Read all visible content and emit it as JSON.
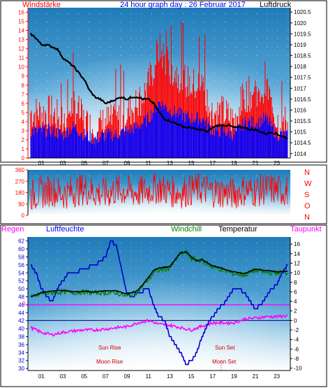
{
  "header": {
    "left_label": "Windstärke",
    "title": "24 hour graph day : 26 Februar 2017",
    "right_label": "Luftdruck"
  },
  "bottom_header": {
    "regen": "Regen",
    "luftfeuchte": "Luftfeuchte",
    "windchill": "Windchill",
    "temperatur": "Temperatur",
    "taupunkt": "Taupunkt"
  },
  "compass_labels": [
    "N",
    "W",
    "S",
    "O",
    "N"
  ],
  "annotations": {
    "sun_rise": "Sun Rise",
    "moon_rise": "Moon Rise",
    "sun_set": "Sun Set",
    "moon_set": "Moon Set",
    "rain_zero": "0"
  },
  "colors": {
    "wind": "#ff0000",
    "gust_bars": "#0000ff",
    "pressure": "#000000",
    "direction": "#ff0000",
    "humidity": "#0000cc",
    "windchill": "#008000",
    "temperature": "#000000",
    "dewpoint": "#ff00ff",
    "panel_top": "#1e78b4",
    "panel_bottom": "#ffffff"
  },
  "chart_data": [
    {
      "type": "line",
      "title": "24 hour graph day : 26 Februar 2017",
      "x_ticks": [
        "01",
        "03",
        "05",
        "07",
        "09",
        "11",
        "13",
        "15",
        "17",
        "19",
        "21",
        "23"
      ],
      "y_left": {
        "label": "Windstärke",
        "ticks": [
          "0",
          "1",
          "2",
          "3",
          "4",
          "5",
          "6",
          "7",
          "8",
          "9",
          "10",
          "11",
          "12",
          "13",
          "14",
          "15",
          "16"
        ],
        "range": [
          0,
          16.5
        ]
      },
      "y_right": {
        "label": "Luftdruck",
        "ticks": [
          "1014",
          "1014.5",
          "1015",
          "1015.5",
          "1016",
          "1016.5",
          "1017",
          "1017.5",
          "1018",
          "1018.5",
          "1019",
          "1019.5",
          "1020",
          "1020.5"
        ],
        "range": [
          1013.8,
          1020.7
        ]
      },
      "series": [
        {
          "name": "Luftdruck",
          "x": [
            0,
            0.5,
            1,
            1.5,
            2,
            2.5,
            3,
            3.5,
            4,
            4.5,
            5,
            5.5,
            6,
            6.5,
            7,
            7.5,
            8,
            8.5,
            9,
            9.5,
            10,
            10.5,
            11,
            11.5,
            12,
            12.5,
            13,
            13.5,
            14,
            14.5,
            15,
            15.5,
            16,
            16.5,
            17,
            17.5,
            18,
            18.5,
            19,
            19.5,
            20,
            20.5,
            21,
            21.5,
            22,
            22.5,
            23,
            23.5,
            24
          ],
          "values": [
            1019.5,
            1019.3,
            1019.0,
            1019.0,
            1018.9,
            1018.8,
            1018.4,
            1018.2,
            1018.0,
            1017.7,
            1017.4,
            1016.9,
            1016.6,
            1016.5,
            1016.3,
            1016.4,
            1016.5,
            1016.6,
            1016.5,
            1016.6,
            1016.6,
            1016.5,
            1016.5,
            1016.3,
            1015.9,
            1015.6,
            1015.5,
            1015.4,
            1015.3,
            1015.2,
            1015.2,
            1015.1,
            1015.1,
            1015.0,
            1015.2,
            1015.3,
            1015.3,
            1015.3,
            1015.2,
            1015.2,
            1015.2,
            1015.1,
            1015.1,
            1015.0,
            1014.9,
            1015.0,
            1014.9,
            1014.8,
            1014.7
          ]
        },
        {
          "name": "Windstärke",
          "x": [
            0,
            1,
            2,
            3,
            4,
            5,
            6,
            7,
            8,
            9,
            10,
            11,
            12,
            13,
            14,
            15,
            16,
            17,
            18,
            19,
            20,
            21,
            22,
            23,
            24
          ],
          "values": [
            5,
            5,
            5,
            4,
            6,
            4,
            3,
            4,
            4,
            5,
            6,
            8,
            12,
            10,
            9,
            8,
            8,
            5,
            5,
            4,
            7,
            7,
            8,
            4,
            4
          ]
        }
      ]
    },
    {
      "type": "scatter",
      "title": "",
      "x_ticks": [],
      "y_left": {
        "label": "",
        "ticks": [
          "0",
          "90",
          "180",
          "270",
          "360"
        ],
        "range": [
          0,
          360
        ]
      },
      "series": [
        {
          "name": "",
          "x": [
            0,
            1,
            2,
            3,
            4,
            5,
            6,
            7,
            8,
            9,
            10,
            11,
            12,
            13,
            14,
            15,
            16,
            17,
            18,
            19,
            20,
            21,
            22,
            23,
            24
          ],
          "values": [
            160,
            180,
            200,
            170,
            190,
            210,
            180,
            170,
            200,
            190,
            180,
            200,
            220,
            190,
            180,
            200,
            210,
            190,
            180,
            170,
            200,
            190,
            210,
            200,
            190
          ]
        }
      ]
    },
    {
      "type": "line",
      "title": "",
      "x_ticks": [
        "01",
        "03",
        "05",
        "07",
        "09",
        "11",
        "13",
        "15",
        "17",
        "19",
        "21",
        "23"
      ],
      "y_left": {
        "label": "Luftfeuchte",
        "ticks": [
          "30",
          "32",
          "34",
          "36",
          "38",
          "40",
          "42",
          "44",
          "46",
          "48",
          "50",
          "52",
          "54",
          "56",
          "58",
          "60",
          "62"
        ],
        "range": [
          29.5,
          63
        ]
      },
      "y_right": {
        "label": "Temperatur",
        "ticks": [
          "-10",
          "-8",
          "-6",
          "-4",
          "-2",
          "0",
          "2",
          "4",
          "6",
          "8",
          "10",
          "12",
          "14",
          "16"
        ],
        "range": [
          -10.5,
          17.5
        ]
      },
      "series": [
        {
          "name": "Luftfeuchte",
          "x": [
            0,
            0.5,
            1,
            1.5,
            2,
            2.5,
            3,
            3.5,
            4,
            5,
            6,
            7,
            7.5,
            8,
            8.5,
            9,
            9.5,
            10,
            11,
            11.5,
            12,
            12.5,
            13,
            13.5,
            14,
            14.5,
            15,
            15.5,
            16,
            16.5,
            17,
            17.5,
            18,
            18.5,
            19,
            19.5,
            20,
            20.5,
            21,
            21.5,
            22,
            22.5,
            23,
            23.5,
            24
          ],
          "values": [
            56,
            54,
            50,
            48,
            47,
            50,
            52,
            54,
            54,
            55,
            56,
            58,
            62,
            61,
            55,
            49,
            48,
            49,
            50,
            46,
            43,
            42,
            38,
            36,
            34,
            31,
            32,
            34,
            38,
            41,
            43,
            45,
            46,
            48,
            50,
            50,
            49,
            47,
            45,
            46,
            48,
            50,
            51,
            54,
            56
          ]
        },
        {
          "name": "Temperatur",
          "x": [
            0,
            1,
            2,
            3,
            4,
            5,
            6,
            7,
            8,
            9,
            10,
            11,
            11.5,
            12,
            13,
            14,
            14.5,
            15,
            15.5,
            16,
            17,
            18,
            19,
            20,
            21,
            22,
            23,
            24
          ],
          "values": [
            5.0,
            5.8,
            6.2,
            6.3,
            6.0,
            6.1,
            6.0,
            6.2,
            6.2,
            5.5,
            6.3,
            9.0,
            10.5,
            11.0,
            11.3,
            14.2,
            14.4,
            13.3,
            12.5,
            12.8,
            11.5,
            10.8,
            10.2,
            9.8,
            10.8,
            10.5,
            10.2,
            10.3
          ]
        },
        {
          "name": "Windchill",
          "x": [
            0,
            1,
            2,
            3,
            4,
            5,
            6,
            7,
            8,
            9,
            10,
            11,
            11.5,
            12,
            13,
            14,
            14.5,
            15,
            16,
            17,
            18,
            19,
            20,
            21,
            22,
            23,
            24
          ],
          "values": [
            4.8,
            5.6,
            5.8,
            6.0,
            5.8,
            6.0,
            5.8,
            5.8,
            5.8,
            5.0,
            6.0,
            8.6,
            10.0,
            10.5,
            11.0,
            14.0,
            14.3,
            13.0,
            12.5,
            11.2,
            10.5,
            9.8,
            9.5,
            10.5,
            10.0,
            10.0,
            10.0
          ]
        },
        {
          "name": "Taupunkt",
          "x": [
            0,
            1,
            2,
            3,
            4,
            5,
            6,
            7,
            8,
            9,
            10,
            11,
            12,
            13,
            14,
            15,
            16,
            17,
            18,
            19,
            20,
            21,
            22,
            23,
            24
          ],
          "values": [
            -1.5,
            -2.5,
            -3.0,
            -2.5,
            -2.2,
            -2.0,
            -2.0,
            -1.8,
            -1.5,
            -1.3,
            -0.5,
            0,
            -0.8,
            -1.0,
            -1.5,
            -2.0,
            -1.2,
            -0.5,
            -0.5,
            -0.5,
            0.3,
            0.5,
            0.8,
            0.8,
            1.0
          ]
        }
      ]
    }
  ]
}
